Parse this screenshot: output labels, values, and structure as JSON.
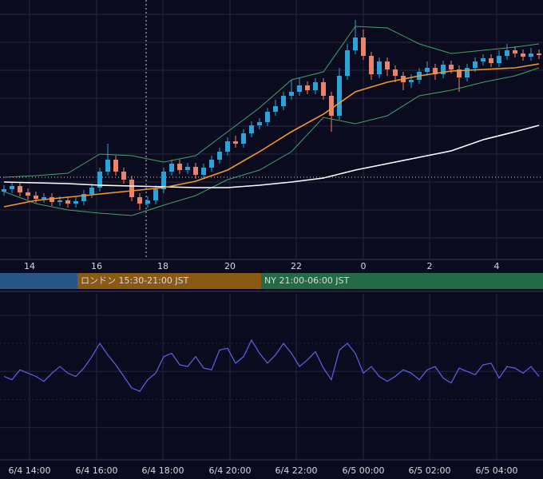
{
  "chart_data": [
    {
      "type": "candlestick",
      "xlim": [
        -0.5,
        67.5
      ],
      "ylim": [
        0,
        325
      ],
      "yticks": [
        27,
        62,
        97,
        132,
        167,
        202,
        237,
        272,
        307
      ],
      "ytick_labels": false,
      "grid": true,
      "up_color": "#2aa3d8",
      "down_color": "#e8846c",
      "open": [
        85,
        88,
        92,
        84,
        80,
        76,
        78,
        72,
        74,
        70,
        73,
        82,
        90,
        110,
        125,
        110,
        100,
        78,
        70,
        74,
        88,
        110,
        120,
        112,
        116,
        106,
        115,
        125,
        135,
        148,
        145,
        158,
        168,
        172,
        185,
        192,
        205,
        210,
        218,
        212,
        222,
        205,
        180,
        230,
        262,
        278,
        255,
        232,
        248,
        238,
        230,
        222,
        225,
        235,
        240,
        232,
        244,
        238,
        228,
        240,
        248,
        252,
        246,
        255,
        262,
        258,
        254,
        258
      ],
      "high": [
        93,
        97,
        97,
        89,
        85,
        83,
        83,
        79,
        79,
        78,
        87,
        95,
        115,
        145,
        130,
        115,
        105,
        83,
        79,
        93,
        115,
        125,
        125,
        121,
        121,
        120,
        130,
        140,
        153,
        155,
        163,
        173,
        177,
        190,
        200,
        210,
        225,
        228,
        223,
        227,
        227,
        210,
        240,
        270,
        300,
        288,
        260,
        253,
        253,
        243,
        235,
        232,
        240,
        248,
        245,
        249,
        249,
        243,
        245,
        253,
        257,
        257,
        262,
        270,
        267,
        263,
        265,
        263
      ],
      "low": [
        80,
        83,
        79,
        75,
        71,
        71,
        67,
        67,
        65,
        65,
        68,
        77,
        85,
        105,
        105,
        95,
        73,
        62,
        65,
        69,
        83,
        105,
        107,
        107,
        101,
        101,
        110,
        120,
        130,
        140,
        140,
        153,
        163,
        167,
        180,
        187,
        200,
        205,
        207,
        207,
        200,
        160,
        175,
        225,
        257,
        250,
        225,
        227,
        230,
        222,
        212,
        215,
        220,
        230,
        225,
        227,
        233,
        210,
        223,
        235,
        243,
        241,
        241,
        250,
        253,
        249,
        249,
        251
      ],
      "close": [
        88,
        92,
        84,
        80,
        76,
        78,
        72,
        74,
        70,
        73,
        82,
        90,
        110,
        125,
        110,
        100,
        78,
        70,
        74,
        88,
        110,
        120,
        112,
        116,
        106,
        115,
        125,
        135,
        148,
        145,
        158,
        168,
        172,
        185,
        192,
        205,
        210,
        218,
        212,
        222,
        205,
        180,
        230,
        262,
        278,
        255,
        232,
        248,
        238,
        230,
        222,
        225,
        235,
        240,
        232,
        244,
        238,
        228,
        240,
        248,
        252,
        246,
        255,
        262,
        258,
        254,
        258,
        256
      ],
      "overlay_x": [
        0,
        4,
        8,
        12,
        16,
        20,
        24,
        28,
        32,
        36,
        40,
        44,
        48,
        52,
        56,
        60,
        64,
        67
      ],
      "overlays": [
        {
          "color": "#3fa46a",
          "values": [
            103,
            105,
            108,
            132,
            130,
            122,
            130,
            160,
            190,
            225,
            235,
            292,
            290,
            270,
            258,
            262,
            266,
            270
          ]
        },
        {
          "color": "#3fa46a",
          "values": [
            85,
            70,
            62,
            58,
            55,
            68,
            80,
            100,
            112,
            135,
            178,
            170,
            180,
            205,
            212,
            222,
            230,
            240
          ]
        },
        {
          "color": "#ffffff",
          "values": [
            97,
            96,
            95,
            93,
            92,
            91,
            90,
            90,
            93,
            97,
            102,
            112,
            120,
            128,
            136,
            150,
            160,
            168
          ]
        },
        {
          "color": "#f5962a",
          "values": [
            66,
            74,
            78,
            82,
            86,
            90,
            98,
            112,
            135,
            160,
            182,
            210,
            222,
            230,
            236,
            238,
            240,
            245
          ]
        }
      ],
      "xticks": [
        {
          "value": 3.2,
          "label": "14"
        },
        {
          "value": 11.6,
          "label": "16"
        },
        {
          "value": 19.9,
          "label": "18"
        },
        {
          "value": 28.3,
          "label": "20"
        },
        {
          "value": 36.6,
          "label": "22"
        },
        {
          "value": 45,
          "label": "0"
        },
        {
          "value": 53.3,
          "label": "2"
        },
        {
          "value": 61.7,
          "label": "4"
        }
      ],
      "sessions": [
        {
          "start": -0.5,
          "end": 9.2,
          "color": "#2a5687"
        },
        {
          "label": "ロンドン 15:30-21:00 JST",
          "start": 9.2,
          "end": 32.2,
          "color": "#8a5a14"
        },
        {
          "label": "NY 21:00-06:00 JST",
          "start": 32.2,
          "end": 67.5,
          "color": "#236b45"
        }
      ]
    },
    {
      "type": "line",
      "xlim": [
        -0.5,
        67.5
      ],
      "ylim": [
        0,
        100
      ],
      "yticks": [
        19,
        36,
        53,
        70,
        87
      ],
      "ytick_labels": false,
      "grid": true,
      "color": "#5b63e8",
      "values": [
        50,
        48,
        54,
        52,
        50,
        47,
        52,
        56,
        52,
        50,
        55,
        62,
        70,
        63,
        57,
        50,
        43,
        41,
        48,
        52,
        62,
        64,
        57,
        56,
        62,
        55,
        54,
        66,
        67,
        58,
        62,
        72,
        64,
        58,
        63,
        70,
        64,
        56,
        60,
        65,
        55,
        48,
        66,
        70,
        64,
        52,
        56,
        50,
        47,
        50,
        54,
        52,
        48,
        54,
        56,
        49,
        46,
        55,
        53,
        51,
        57,
        58,
        49,
        56,
        55,
        52,
        56,
        50
      ],
      "xticks": [
        {
          "value": 3.2,
          "label": "6/4 14:00"
        },
        {
          "value": 11.6,
          "label": "6/4 16:00"
        },
        {
          "value": 19.9,
          "label": "6/4 18:00"
        },
        {
          "value": 28.3,
          "label": "6/4 20:00"
        },
        {
          "value": 36.6,
          "label": "6/4 22:00"
        },
        {
          "value": 45,
          "label": "6/5 00:00"
        },
        {
          "value": 53.3,
          "label": "6/5 02:00"
        },
        {
          "value": 61.7,
          "label": "6/5 04:00"
        }
      ]
    }
  ]
}
